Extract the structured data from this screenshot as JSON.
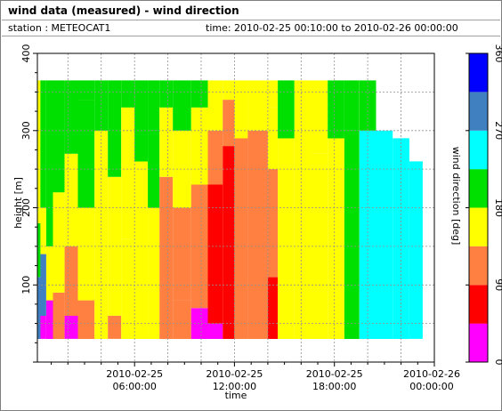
{
  "header": {
    "title": "wind data (measured) - wind direction",
    "station": "station : METEOCAT1",
    "time_range": "time: 2010-02-25 00:10:00 to 2010-02-26 00:00:00"
  },
  "chart_data": {
    "type": "heatmap",
    "xlabel": "time",
    "ylabel": "height [m]",
    "x_ticks": [
      {
        "h": 6,
        "line1": "2010-02-25",
        "line2": "06:00:00"
      },
      {
        "h": 12,
        "line1": "2010-02-25",
        "line2": "12:00:00"
      },
      {
        "h": 18,
        "line1": "2010-02-25",
        "line2": "18:00:00"
      },
      {
        "h": 24,
        "line1": "2010-02-26",
        "line2": "00:00:00"
      }
    ],
    "xlim_hours": [
      0.1667,
      24
    ],
    "y_ticks": [
      100,
      200,
      300,
      400
    ],
    "ylim": [
      0,
      400
    ],
    "colorbar": {
      "label": "wind direction [deg]",
      "ticks": [
        0,
        90,
        180,
        270,
        360
      ],
      "range": [
        0,
        360
      ],
      "bins": [
        {
          "from": 0,
          "to": 45,
          "color": "#ff00ff"
        },
        {
          "from": 45,
          "to": 90,
          "color": "#ff0000"
        },
        {
          "from": 90,
          "to": 135,
          "color": "#ff8040"
        },
        {
          "from": 135,
          "to": 180,
          "color": "#ffff00"
        },
        {
          "from": 180,
          "to": 225,
          "color": "#00e000"
        },
        {
          "from": 225,
          "to": 270,
          "color": "#00ffff"
        },
        {
          "from": 270,
          "to": 315,
          "color": "#4080c0"
        },
        {
          "from": 315,
          "to": 360,
          "color": "#0000ff"
        }
      ]
    },
    "height_range": [
      30,
      365
    ],
    "bands": [
      {
        "h0": 0.17,
        "h1": 0.35,
        "segments": [
          [
            30,
            110,
            300
          ],
          [
            110,
            180,
            200
          ],
          [
            180,
            365,
            160
          ]
        ]
      },
      {
        "h0": 0.35,
        "h1": 0.7,
        "segments": [
          [
            30,
            60,
            20
          ],
          [
            60,
            140,
            300
          ],
          [
            140,
            200,
            160
          ],
          [
            200,
            365,
            200
          ]
        ]
      },
      {
        "h0": 0.7,
        "h1": 1.1,
        "segments": [
          [
            30,
            80,
            40
          ],
          [
            80,
            150,
            160
          ],
          [
            150,
            365,
            200
          ]
        ]
      },
      {
        "h0": 1.1,
        "h1": 1.8,
        "segments": [
          [
            30,
            90,
            120
          ],
          [
            90,
            220,
            160
          ],
          [
            220,
            365,
            200
          ]
        ]
      },
      {
        "h0": 1.8,
        "h1": 2.6,
        "segments": [
          [
            30,
            60,
            20
          ],
          [
            60,
            150,
            120
          ],
          [
            150,
            270,
            160
          ],
          [
            270,
            365,
            200
          ]
        ]
      },
      {
        "h0": 2.6,
        "h1": 3.6,
        "segments": [
          [
            30,
            80,
            120
          ],
          [
            80,
            200,
            160
          ],
          [
            200,
            340,
            200
          ],
          [
            340,
            365,
            200
          ]
        ]
      },
      {
        "h0": 3.6,
        "h1": 4.4,
        "segments": [
          [
            30,
            120,
            160
          ],
          [
            120,
            300,
            150
          ],
          [
            300,
            365,
            200
          ]
        ]
      },
      {
        "h0": 4.4,
        "h1": 5.2,
        "segments": [
          [
            30,
            60,
            120
          ],
          [
            60,
            240,
            160
          ],
          [
            240,
            365,
            200
          ]
        ]
      },
      {
        "h0": 5.2,
        "h1": 6.0,
        "segments": [
          [
            30,
            160,
            160
          ],
          [
            160,
            330,
            150
          ],
          [
            330,
            365,
            200
          ]
        ]
      },
      {
        "h0": 6.0,
        "h1": 6.8,
        "segments": [
          [
            30,
            100,
            160
          ],
          [
            100,
            260,
            155
          ],
          [
            260,
            365,
            200
          ]
        ]
      },
      {
        "h0": 6.8,
        "h1": 7.5,
        "segments": [
          [
            30,
            200,
            160
          ],
          [
            200,
            300,
            200
          ],
          [
            300,
            365,
            200
          ]
        ]
      },
      {
        "h0": 7.5,
        "h1": 8.3,
        "segments": [
          [
            30,
            240,
            120
          ],
          [
            240,
            330,
            160
          ],
          [
            330,
            365,
            200
          ]
        ]
      },
      {
        "h0": 8.3,
        "h1": 9.4,
        "segments": [
          [
            30,
            80,
            120
          ],
          [
            80,
            200,
            110
          ],
          [
            200,
            300,
            160
          ],
          [
            300,
            365,
            200
          ]
        ]
      },
      {
        "h0": 9.4,
        "h1": 10.4,
        "segments": [
          [
            30,
            70,
            40
          ],
          [
            70,
            230,
            115
          ],
          [
            230,
            330,
            160
          ],
          [
            330,
            365,
            200
          ]
        ]
      },
      {
        "h0": 10.4,
        "h1": 11.3,
        "segments": [
          [
            30,
            50,
            20
          ],
          [
            50,
            230,
            70
          ],
          [
            230,
            300,
            120
          ],
          [
            300,
            365,
            160
          ]
        ]
      },
      {
        "h0": 11.3,
        "h1": 12.0,
        "segments": [
          [
            30,
            280,
            70
          ],
          [
            280,
            340,
            120
          ],
          [
            340,
            365,
            160
          ]
        ]
      },
      {
        "h0": 12.0,
        "h1": 12.8,
        "segments": [
          [
            30,
            290,
            120
          ],
          [
            290,
            365,
            160
          ]
        ]
      },
      {
        "h0": 12.8,
        "h1": 14.0,
        "segments": [
          [
            30,
            300,
            115
          ],
          [
            300,
            365,
            160
          ]
        ]
      },
      {
        "h0": 14.0,
        "h1": 14.6,
        "segments": [
          [
            30,
            110,
            70
          ],
          [
            110,
            250,
            120
          ],
          [
            250,
            330,
            160
          ],
          [
            330,
            365,
            160
          ]
        ]
      },
      {
        "h0": 14.6,
        "h1": 15.6,
        "segments": [
          [
            30,
            200,
            160
          ],
          [
            200,
            290,
            165
          ],
          [
            290,
            365,
            200
          ]
        ]
      },
      {
        "h0": 15.6,
        "h1": 16.6,
        "segments": [
          [
            30,
            300,
            160
          ],
          [
            300,
            365,
            165
          ]
        ]
      },
      {
        "h0": 16.6,
        "h1": 17.6,
        "segments": [
          [
            30,
            270,
            160
          ],
          [
            270,
            365,
            165
          ]
        ]
      },
      {
        "h0": 17.6,
        "h1": 18.6,
        "segments": [
          [
            30,
            290,
            160
          ],
          [
            290,
            365,
            200
          ]
        ]
      },
      {
        "h0": 18.6,
        "h1": 19.5,
        "segments": [
          [
            30,
            300,
            200
          ],
          [
            300,
            365,
            205
          ]
        ]
      },
      {
        "h0": 19.5,
        "h1": 20.5,
        "segments": [
          [
            30,
            300,
            250
          ],
          [
            300,
            365,
            200
          ]
        ]
      },
      {
        "h0": 20.5,
        "h1": 21.5,
        "segments": [
          [
            30,
            300,
            250
          ]
        ]
      },
      {
        "h0": 21.5,
        "h1": 22.5,
        "segments": [
          [
            30,
            290,
            250
          ]
        ]
      },
      {
        "h0": 22.5,
        "h1": 23.3,
        "segments": [
          [
            30,
            260,
            250
          ]
        ]
      }
    ]
  }
}
